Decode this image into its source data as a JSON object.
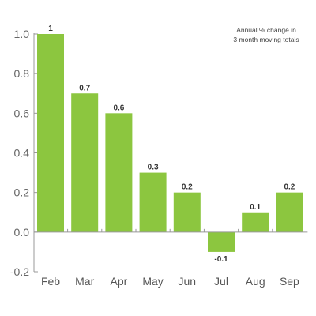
{
  "chart_data": {
    "type": "bar",
    "categories": [
      "Feb",
      "Mar",
      "Apr",
      "May",
      "Jun",
      "Jul",
      "Aug",
      "Sep"
    ],
    "values": [
      1,
      0.7,
      0.6,
      0.3,
      0.2,
      -0.1,
      0.1,
      0.2
    ],
    "value_labels": [
      "1",
      "0.7",
      "0.6",
      "0.3",
      "0.2",
      "-0.1",
      "0.1",
      "0.2"
    ],
    "yticks": [
      "1.0",
      "0.8",
      "0.6",
      "0.4",
      "0.2",
      "0.0",
      "-0.2"
    ],
    "ytick_values": [
      1.0,
      0.8,
      0.6,
      0.4,
      0.2,
      0.0,
      -0.2
    ],
    "ylim": [
      -0.2,
      1.0
    ],
    "annotation": {
      "line1": "Annual % change in",
      "line2": "3 month moving totals"
    },
    "title": "",
    "xlabel": "",
    "ylabel": "",
    "grid": false,
    "bar_color": "#8cc63f",
    "axis_color": "#999999"
  }
}
